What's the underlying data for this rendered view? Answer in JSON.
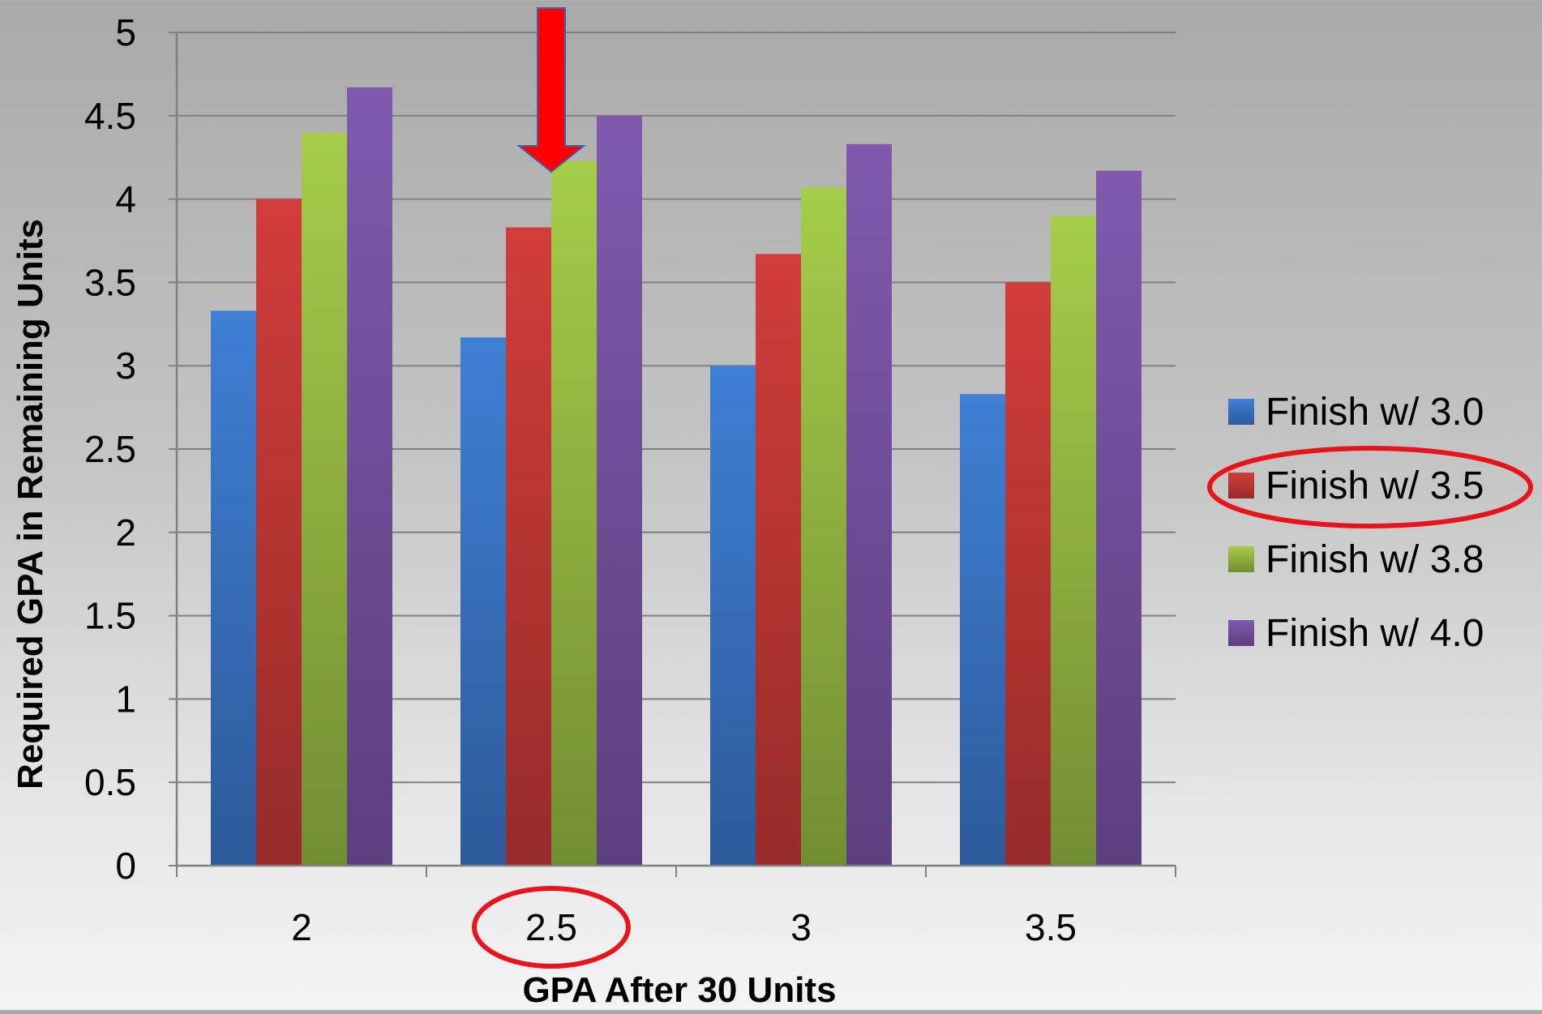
{
  "chart_data": {
    "type": "bar",
    "title": "",
    "xlabel": "GPA After 30 Units",
    "ylabel": "Required GPA in Remaining Units",
    "categories": [
      "2",
      "2.5",
      "3",
      "3.5"
    ],
    "ylim": [
      0,
      5
    ],
    "yticks": [
      "0",
      "0.5",
      "1",
      "1.5",
      "2",
      "2.5",
      "3",
      "3.5",
      "4",
      "4.5",
      "5"
    ],
    "grid": true,
    "legend_position": "right",
    "series": [
      {
        "name": "Finish w/ 3.0",
        "values": [
          3.33,
          3.17,
          3.0,
          2.83
        ],
        "color": "#3f7fd4",
        "color_dark": "#2d5a9a"
      },
      {
        "name": "Finish w/ 3.5",
        "values": [
          4.0,
          3.83,
          3.67,
          3.5
        ],
        "color": "#d13d3a",
        "color_dark": "#962b29"
      },
      {
        "name": "Finish w/ 3.8",
        "values": [
          4.4,
          4.23,
          4.07,
          3.9
        ],
        "color": "#a6cc4a",
        "color_dark": "#718e33"
      },
      {
        "name": "Finish w/ 4.0",
        "values": [
          4.67,
          4.5,
          4.33,
          4.17
        ],
        "color": "#8059ad",
        "color_dark": "#5c3f7e"
      }
    ],
    "annotations": {
      "highlighted_category": "2.5",
      "highlighted_series": "Finish w/ 3.5",
      "arrow_color": "#ff0000",
      "circle_color": "#e8141c"
    }
  }
}
